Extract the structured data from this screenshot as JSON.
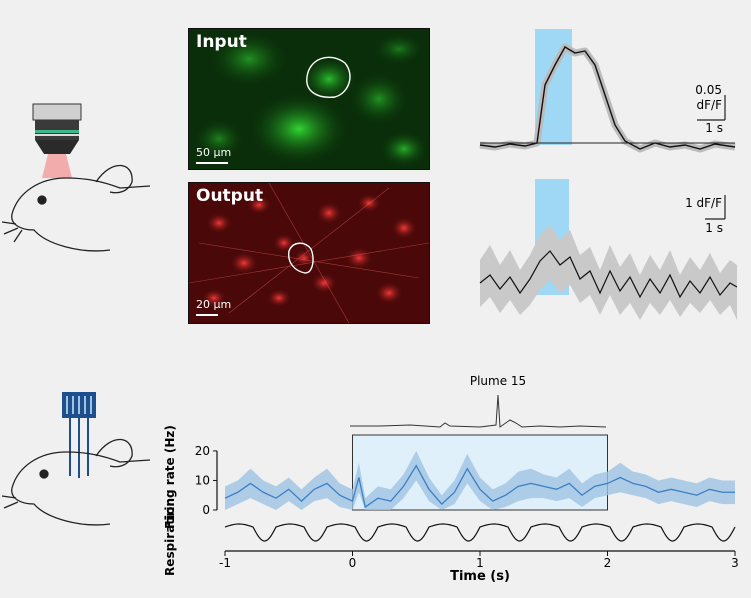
{
  "imaging": {
    "input_title": "Input",
    "input_scale": "50 µm",
    "output_title": "Output",
    "output_scale": "20 µm",
    "input_color": "#1fc51f",
    "output_color": "#e01a1a",
    "stim_color": "#9fd8f5",
    "trace_top_scale_y": "0.05",
    "trace_top_scale_unit": "dF/F",
    "trace_top_scale_x": "1 s",
    "trace_bottom_scale_y": "1 dF/F",
    "trace_bottom_scale_x": "1 s"
  },
  "chart_data": {
    "type": "line",
    "title": "Plume 15",
    "xlabel": "Time (s)",
    "ylabel_firing": "Firing rate (Hz)",
    "ylabel_resp": "Respiration",
    "xlim": [
      -1,
      3
    ],
    "ylim": [
      0,
      22
    ],
    "xticks": [
      "-1",
      "0",
      "1",
      "2",
      "3"
    ],
    "yticks": [
      "0",
      "10",
      "20"
    ],
    "stimulus_window": [
      0,
      2
    ],
    "line_color": "#3b7fc4",
    "band_color": "#9fc3e3",
    "firing_rate": {
      "x": [
        -1,
        -0.9,
        -0.8,
        -0.7,
        -0.6,
        -0.5,
        -0.4,
        -0.3,
        -0.2,
        -0.1,
        0,
        0.05,
        0.1,
        0.2,
        0.3,
        0.4,
        0.5,
        0.6,
        0.7,
        0.8,
        0.9,
        1,
        1.1,
        1.2,
        1.3,
        1.4,
        1.5,
        1.6,
        1.7,
        1.8,
        1.9,
        2,
        2.1,
        2.2,
        2.3,
        2.4,
        2.5,
        2.6,
        2.7,
        2.8,
        2.9,
        3
      ],
      "mean": [
        4,
        6,
        9,
        6,
        4,
        7,
        3,
        7,
        9,
        5,
        3,
        11,
        1,
        4,
        3,
        8,
        15,
        7,
        2,
        6,
        14,
        7,
        3,
        5,
        8,
        9,
        8,
        7,
        9,
        5,
        8,
        9,
        11,
        9,
        8,
        6,
        7,
        6,
        5,
        7,
        6,
        6
      ],
      "sem": [
        4,
        4,
        5,
        4,
        4,
        4,
        4,
        4,
        5,
        4,
        4,
        5,
        3,
        4,
        4,
        4,
        5,
        4,
        3,
        4,
        5,
        4,
        4,
        4,
        5,
        5,
        4,
        4,
        5,
        4,
        4,
        4,
        5,
        4,
        4,
        4,
        4,
        4,
        4,
        4,
        4,
        4
      ]
    }
  }
}
